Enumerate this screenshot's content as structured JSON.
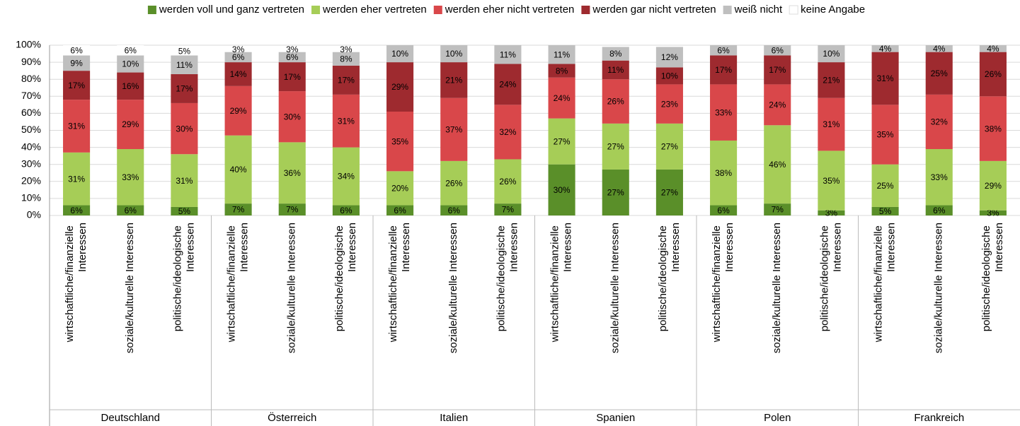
{
  "chart_data": {
    "type": "stacked_bar",
    "groups": [
      "Deutschland",
      "Österreich",
      "Italien",
      "Spanien",
      "Polen",
      "Frankreich"
    ],
    "categories": [
      "wirtschaftliche/finanzielle Interessen",
      "soziale/kulturelle Interessen",
      "politische/ideologische Interessen",
      "wirtschaftliche/finanzielle Interessen",
      "soziale/kulturelle Interessen",
      "politische/ideologische Interessen",
      "wirtschaftliche/finanzielle Interessen",
      "soziale/kulturelle Interessen",
      "politische/ideologische Interessen",
      "wirtschaftliche/finanzielle Interessen",
      "soziale/kulturelle Interessen",
      "politische/ideologische Interessen",
      "wirtschaftliche/finanzielle Interessen",
      "soziale/kulturelle Interessen",
      "politische/ideologische Interessen",
      "wirtschaftliche/finanzielle Interessen",
      "soziale/kulturelle Interessen",
      "politische/ideologische Interessen"
    ],
    "series": [
      {
        "name": "werden voll und ganz vertreten",
        "color": "#5a8f29",
        "values": [
          6,
          6,
          5,
          7,
          7,
          6,
          6,
          6,
          7,
          30,
          27,
          27,
          6,
          7,
          3,
          5,
          6,
          3
        ],
        "value_labels": [
          "6%",
          "6%",
          "5%",
          "7%",
          "7%",
          "6%",
          "6%",
          "6%",
          "7%",
          "30%",
          "27%",
          "27%",
          "6%",
          "7%",
          "3%",
          "5%",
          "6%",
          "3%"
        ]
      },
      {
        "name": "werden eher vertreten",
        "color": "#a6cd57",
        "values": [
          31,
          33,
          31,
          40,
          36,
          34,
          20,
          26,
          26,
          27,
          27,
          27,
          38,
          46,
          35,
          25,
          33,
          29
        ],
        "value_labels": [
          "31%",
          "33%",
          "31%",
          "40%",
          "36%",
          "34%",
          "20%",
          "26%",
          "26%",
          "27%",
          "27%",
          "27%",
          "38%",
          "46%",
          "35%",
          "25%",
          "33%",
          "29%"
        ]
      },
      {
        "name": "werden eher nicht vertreten",
        "color": "#d9474a",
        "values": [
          31,
          29,
          30,
          29,
          30,
          31,
          35,
          37,
          32,
          24,
          26,
          23,
          33,
          24,
          31,
          35,
          32,
          38
        ],
        "value_labels": [
          "31%",
          "29%",
          "30%",
          "29%",
          "30%",
          "31%",
          "35%",
          "37%",
          "32%",
          "24%",
          "26%",
          "23%",
          "33%",
          "24%",
          "31%",
          "35%",
          "32%",
          "38%"
        ]
      },
      {
        "name": "werden gar nicht vertreten",
        "color": "#9e2a2f",
        "values": [
          17,
          16,
          17,
          14,
          17,
          17,
          29,
          21,
          24,
          8,
          11,
          10,
          17,
          17,
          21,
          31,
          25,
          26
        ],
        "value_labels": [
          "17%",
          "16%",
          "17%",
          "14%",
          "17%",
          "17%",
          "29%",
          "21%",
          "24%",
          "8%",
          "11%",
          "10%",
          "17%",
          "17%",
          "21%",
          "31%",
          "25%",
          "26%"
        ]
      },
      {
        "name": "weiß nicht",
        "color": "#bfbfbf",
        "values": [
          9,
          10,
          11,
          6,
          6,
          8,
          10,
          10,
          11,
          11,
          8,
          12,
          6,
          6,
          10,
          4,
          4,
          4
        ],
        "value_labels": [
          "9%",
          "10%",
          "11%",
          "6%",
          "6%",
          "8%",
          "10%",
          "10%",
          "11%",
          "11%",
          "8%",
          "12%",
          "6%",
          "6%",
          "10%",
          "4%",
          "4%",
          "4%"
        ]
      },
      {
        "name": "keine Angabe",
        "color": "#ffffff",
        "values": [
          6,
          6,
          5,
          3,
          3,
          3,
          null,
          null,
          null,
          null,
          null,
          null,
          null,
          null,
          null,
          null,
          null,
          null
        ],
        "value_labels": [
          "6%",
          "6%",
          "5%",
          "3%",
          "3%",
          "3%",
          null,
          null,
          null,
          null,
          null,
          null,
          null,
          null,
          null,
          null,
          null,
          null
        ]
      }
    ],
    "ylim": [
      0,
      100
    ],
    "yticks": [
      {
        "value": 0,
        "label": "0%"
      },
      {
        "value": 10,
        "label": "10%"
      },
      {
        "value": 20,
        "label": "20%"
      },
      {
        "value": 30,
        "label": "30%"
      },
      {
        "value": 40,
        "label": "40%"
      },
      {
        "value": 50,
        "label": "50%"
      },
      {
        "value": 60,
        "label": "60%"
      },
      {
        "value": 70,
        "label": "70%"
      },
      {
        "value": 80,
        "label": "80%"
      },
      {
        "value": 90,
        "label": "90%"
      },
      {
        "value": 100,
        "label": "100%"
      }
    ],
    "grid": true,
    "legend": "top"
  }
}
